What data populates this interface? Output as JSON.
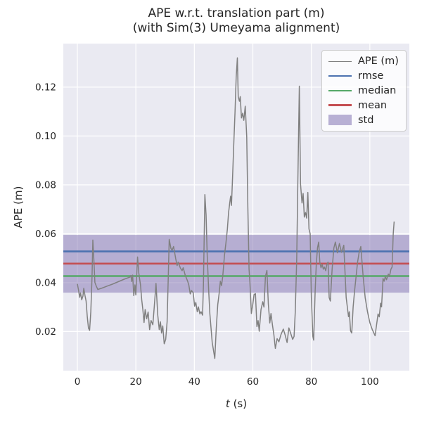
{
  "chart_data": {
    "type": "line",
    "title_line1": "APE w.r.t. translation part (m)",
    "title_line2": "(with Sim(3) Umeyama alignment)",
    "xlabel_var": "t",
    "xlabel_unit": " (s)",
    "ylabel": "APE (m)",
    "xlim": [
      -4.8,
      113.5
    ],
    "ylim": [
      0.004,
      0.1378
    ],
    "xticks": [
      0,
      20,
      40,
      60,
      80,
      100
    ],
    "xtick_labels": [
      "0",
      "20",
      "40",
      "60",
      "80",
      "100"
    ],
    "yticks": [
      0.02,
      0.04,
      0.06,
      0.08,
      0.1,
      0.12
    ],
    "ytick_labels": [
      "0.02",
      "0.04",
      "0.06",
      "0.08",
      "0.10",
      "0.12"
    ],
    "grid": true,
    "background": "#eaeaf2",
    "legend_position": "upper right",
    "stat_lines": [
      {
        "name": "rmse",
        "value": 0.0528,
        "color": "#4C72B0"
      },
      {
        "name": "median",
        "value": 0.0427,
        "color": "#55A868"
      },
      {
        "name": "mean",
        "value": 0.0478,
        "color": "#C44E52"
      }
    ],
    "std_band": {
      "min": 0.0359,
      "max": 0.0595,
      "color": "#8172B2",
      "opacity": 0.5
    },
    "series": [
      {
        "name": "APE (m)",
        "color": "#808080",
        "points": [
          [
            0,
            0.0395
          ],
          [
            0.4,
            0.037
          ],
          [
            0.8,
            0.034
          ],
          [
            1.1,
            0.0358
          ],
          [
            1.5,
            0.033
          ],
          [
            1.9,
            0.0345
          ],
          [
            2.2,
            0.0377
          ],
          [
            2.6,
            0.0348
          ],
          [
            3.0,
            0.0325
          ],
          [
            3.4,
            0.026
          ],
          [
            3.8,
            0.0214
          ],
          [
            4.2,
            0.0205
          ],
          [
            4.6,
            0.028
          ],
          [
            5.0,
            0.042
          ],
          [
            5.3,
            0.0574
          ],
          [
            5.7,
            0.048
          ],
          [
            6.0,
            0.0401
          ],
          [
            6.5,
            0.0385
          ],
          [
            7.0,
            0.0372
          ],
          [
            8.5,
            0.0378
          ],
          [
            10,
            0.0385
          ],
          [
            12,
            0.0394
          ],
          [
            14,
            0.0404
          ],
          [
            16,
            0.0414
          ],
          [
            18.0,
            0.0423
          ],
          [
            18.3,
            0.043
          ],
          [
            18.6,
            0.0405
          ],
          [
            18.9,
            0.0431
          ],
          [
            19.3,
            0.0347
          ],
          [
            19.7,
            0.0391
          ],
          [
            20.0,
            0.035
          ],
          [
            20.4,
            0.046
          ],
          [
            20.6,
            0.0505
          ],
          [
            21.0,
            0.044
          ],
          [
            21.6,
            0.039
          ],
          [
            22.0,
            0.033
          ],
          [
            22.4,
            0.029
          ],
          [
            22.8,
            0.0237
          ],
          [
            23.2,
            0.029
          ],
          [
            23.7,
            0.0252
          ],
          [
            24.2,
            0.028
          ],
          [
            24.7,
            0.0208
          ],
          [
            25.2,
            0.0245
          ],
          [
            25.8,
            0.0228
          ],
          [
            26.3,
            0.03
          ],
          [
            26.9,
            0.0397
          ],
          [
            27.5,
            0.0267
          ],
          [
            28.0,
            0.0208
          ],
          [
            28.4,
            0.024
          ],
          [
            28.8,
            0.0194
          ],
          [
            29.2,
            0.0223
          ],
          [
            29.7,
            0.015
          ],
          [
            30.2,
            0.0168
          ],
          [
            30.7,
            0.024
          ],
          [
            31.1,
            0.043
          ],
          [
            31.4,
            0.0577
          ],
          [
            32.0,
            0.054
          ],
          [
            32.4,
            0.0533
          ],
          [
            32.9,
            0.0548
          ],
          [
            33.6,
            0.05
          ],
          [
            34.1,
            0.047
          ],
          [
            34.5,
            0.0484
          ],
          [
            35.2,
            0.046
          ],
          [
            35.8,
            0.0449
          ],
          [
            36.2,
            0.0461
          ],
          [
            36.9,
            0.043
          ],
          [
            37.7,
            0.0406
          ],
          [
            38.1,
            0.0391
          ],
          [
            38.6,
            0.0354
          ],
          [
            39.0,
            0.0368
          ],
          [
            39.6,
            0.0359
          ],
          [
            40.1,
            0.0304
          ],
          [
            40.5,
            0.0319
          ],
          [
            41.0,
            0.0281
          ],
          [
            41.4,
            0.0301
          ],
          [
            41.9,
            0.0272
          ],
          [
            42.3,
            0.0281
          ],
          [
            42.8,
            0.0267
          ],
          [
            43.1,
            0.0388
          ],
          [
            43.6,
            0.076
          ],
          [
            44.0,
            0.0678
          ],
          [
            44.4,
            0.0513
          ],
          [
            44.9,
            0.0368
          ],
          [
            45.3,
            0.0272
          ],
          [
            46.1,
            0.0156
          ],
          [
            47.0,
            0.009
          ],
          [
            47.5,
            0.0214
          ],
          [
            48.0,
            0.031
          ],
          [
            48.5,
            0.0359
          ],
          [
            48.9,
            0.0406
          ],
          [
            49.3,
            0.0388
          ],
          [
            49.7,
            0.0426
          ],
          [
            50.3,
            0.0513
          ],
          [
            50.8,
            0.0562
          ],
          [
            51.3,
            0.062
          ],
          [
            51.7,
            0.0687
          ],
          [
            52.1,
            0.0725
          ],
          [
            52.4,
            0.0754
          ],
          [
            52.7,
            0.0716
          ],
          [
            53.1,
            0.0841
          ],
          [
            53.5,
            0.0977
          ],
          [
            53.9,
            0.1093
          ],
          [
            54.3,
            0.124
          ],
          [
            54.7,
            0.132
          ],
          [
            55.0,
            0.1161
          ],
          [
            55.4,
            0.1142
          ],
          [
            55.7,
            0.1161
          ],
          [
            56.1,
            0.1074
          ],
          [
            56.5,
            0.1093
          ],
          [
            56.9,
            0.1064
          ],
          [
            57.4,
            0.1122
          ],
          [
            57.9,
            0.0997
          ],
          [
            58.3,
            0.0707
          ],
          [
            58.7,
            0.0455
          ],
          [
            59.0,
            0.0403
          ],
          [
            59.5,
            0.0274
          ],
          [
            60.0,
            0.0313
          ],
          [
            60.4,
            0.0351
          ],
          [
            60.9,
            0.0355
          ],
          [
            61.4,
            0.022
          ],
          [
            61.8,
            0.0245
          ],
          [
            62.2,
            0.0201
          ],
          [
            62.8,
            0.029
          ],
          [
            63.4,
            0.0322
          ],
          [
            63.8,
            0.03
          ],
          [
            64.3,
            0.0426
          ],
          [
            64.8,
            0.045
          ],
          [
            65.3,
            0.0313
          ],
          [
            65.8,
            0.0235
          ],
          [
            66.2,
            0.0274
          ],
          [
            66.7,
            0.0226
          ],
          [
            67.2,
            0.0187
          ],
          [
            67.7,
            0.0131
          ],
          [
            68.3,
            0.0171
          ],
          [
            68.9,
            0.0158
          ],
          [
            69.6,
            0.0187
          ],
          [
            70.4,
            0.021
          ],
          [
            71.0,
            0.0188
          ],
          [
            71.7,
            0.0155
          ],
          [
            72.3,
            0.0215
          ],
          [
            73.0,
            0.019
          ],
          [
            73.6,
            0.0168
          ],
          [
            74.1,
            0.018
          ],
          [
            74.5,
            0.028
          ],
          [
            75.0,
            0.05
          ],
          [
            75.4,
            0.082
          ],
          [
            75.9,
            0.1204
          ],
          [
            76.3,
            0.0803
          ],
          [
            76.8,
            0.0726
          ],
          [
            77.2,
            0.0765
          ],
          [
            77.6,
            0.0668
          ],
          [
            78.0,
            0.0687
          ],
          [
            78.4,
            0.0664
          ],
          [
            78.8,
            0.0769
          ],
          [
            79.2,
            0.062
          ],
          [
            79.6,
            0.06
          ],
          [
            80.0,
            0.0339
          ],
          [
            80.5,
            0.018
          ],
          [
            80.8,
            0.0165
          ],
          [
            81.3,
            0.0368
          ],
          [
            81.7,
            0.0475
          ],
          [
            82.1,
            0.0542
          ],
          [
            82.5,
            0.0566
          ],
          [
            82.9,
            0.0484
          ],
          [
            83.3,
            0.0461
          ],
          [
            83.7,
            0.0475
          ],
          [
            84.1,
            0.0455
          ],
          [
            84.5,
            0.0464
          ],
          [
            84.9,
            0.0449
          ],
          [
            85.3,
            0.0475
          ],
          [
            85.7,
            0.0484
          ],
          [
            86.1,
            0.0339
          ],
          [
            86.5,
            0.0325
          ],
          [
            87.1,
            0.0455
          ],
          [
            87.7,
            0.0542
          ],
          [
            88.2,
            0.0566
          ],
          [
            88.9,
            0.0522
          ],
          [
            89.6,
            0.056
          ],
          [
            90.3,
            0.0524
          ],
          [
            91.1,
            0.0553
          ],
          [
            91.9,
            0.0339
          ],
          [
            92.7,
            0.0261
          ],
          [
            93.0,
            0.0281
          ],
          [
            93.4,
            0.0203
          ],
          [
            93.8,
            0.0194
          ],
          [
            94.3,
            0.0301
          ],
          [
            94.8,
            0.0368
          ],
          [
            95.3,
            0.0426
          ],
          [
            95.8,
            0.0484
          ],
          [
            96.3,
            0.0522
          ],
          [
            96.9,
            0.0548
          ],
          [
            97.7,
            0.0426
          ],
          [
            98.4,
            0.0339
          ],
          [
            99.2,
            0.0281
          ],
          [
            100.0,
            0.0236
          ],
          [
            100.8,
            0.0209
          ],
          [
            101.8,
            0.0183
          ],
          [
            102.8,
            0.0272
          ],
          [
            103.2,
            0.026
          ],
          [
            103.7,
            0.0316
          ],
          [
            104.0,
            0.0301
          ],
          [
            104.5,
            0.0417
          ],
          [
            104.9,
            0.0406
          ],
          [
            105.3,
            0.0426
          ],
          [
            105.7,
            0.0412
          ],
          [
            106.3,
            0.0435
          ],
          [
            106.7,
            0.0425
          ],
          [
            107.2,
            0.0455
          ],
          [
            107.6,
            0.0464
          ],
          [
            108.0,
            0.06
          ],
          [
            108.3,
            0.065
          ]
        ]
      }
    ]
  },
  "legend": {
    "items": [
      {
        "label": "APE (m)",
        "swatch": "line-thin",
        "color": "#808080"
      },
      {
        "label": "rmse",
        "swatch": "line",
        "color": "#4C72B0"
      },
      {
        "label": "median",
        "swatch": "line",
        "color": "#55A868"
      },
      {
        "label": "mean",
        "swatch": "line",
        "color": "#C44E52"
      },
      {
        "label": "std",
        "swatch": "patch",
        "color": "#8172B2"
      }
    ]
  },
  "colors": {
    "plot_background": "#eaeaf2",
    "gridline": "#ffffff",
    "text": "#262626",
    "ape_line": "#808080",
    "rmse": "#4C72B0",
    "median": "#55A868",
    "mean": "#C44E52",
    "std_band": "#8172B2"
  }
}
